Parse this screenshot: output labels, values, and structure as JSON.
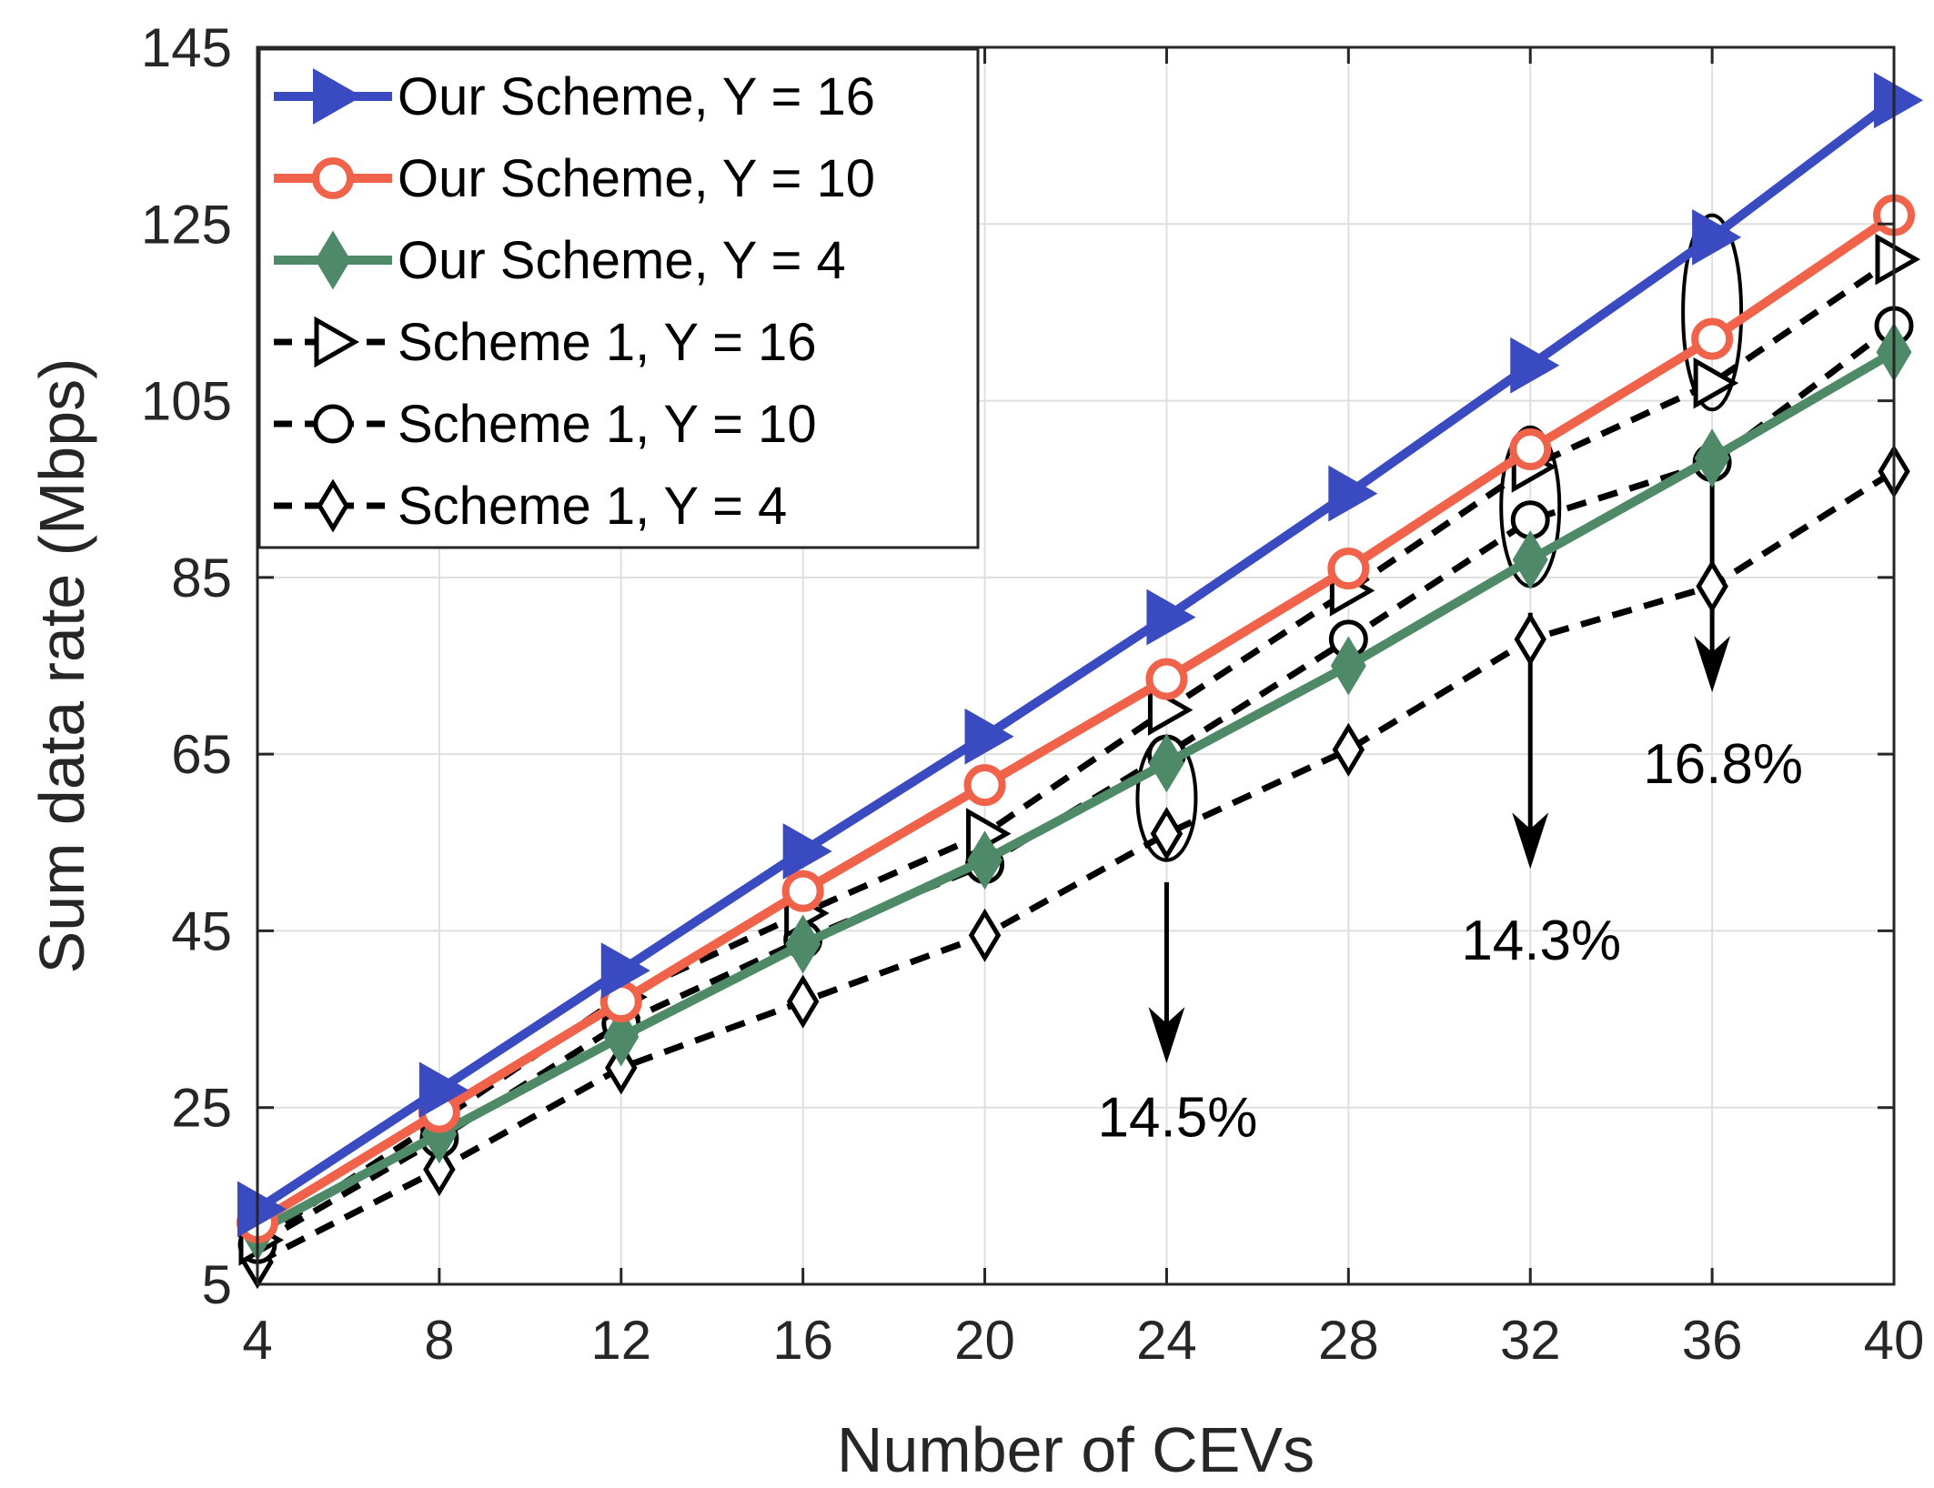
{
  "chart_data": {
    "type": "line",
    "title": "",
    "xlabel": "Number of CEVs",
    "ylabel": "Sum data rate (Mbps)",
    "x": [
      4,
      8,
      12,
      16,
      20,
      24,
      28,
      32,
      36,
      40
    ],
    "xlim": [
      4,
      40
    ],
    "ylim": [
      5,
      145
    ],
    "xticks": [
      "4",
      "8",
      "12",
      "16",
      "20",
      "24",
      "28",
      "32",
      "36",
      "40"
    ],
    "yticks": [
      "5",
      "25",
      "45",
      "65",
      "85",
      "105",
      "125",
      "145"
    ],
    "grid": true,
    "legend_position": "top-left",
    "series": [
      {
        "name": "Our Scheme, Y = 16",
        "color": "#3a4ac0",
        "line": "solid",
        "marker": "triangle-right",
        "values": [
          13.5,
          27,
          40.5,
          54,
          67,
          80.5,
          94.5,
          109,
          123.5,
          139
        ]
      },
      {
        "name": "Our Scheme, Y = 10",
        "color": "#f0634a",
        "line": "solid",
        "marker": "circle",
        "values": [
          12,
          24.5,
          37,
          49.5,
          61.5,
          73.5,
          86,
          99.5,
          112,
          126
        ]
      },
      {
        "name": "Our Scheme, Y = 4",
        "color": "#4f8a68",
        "line": "solid",
        "marker": "diamond",
        "values": [
          11,
          22,
          33,
          43.5,
          53,
          64,
          75,
          87,
          98.5,
          110.5
        ]
      },
      {
        "name": "Scheme 1, Y = 16",
        "color": "#000000",
        "line": "dashed",
        "marker": "triangle-right",
        "values": [
          10,
          23.5,
          37.5,
          47,
          56,
          70,
          83.5,
          97.5,
          107,
          121
        ]
      },
      {
        "name": "Scheme 1, Y = 10",
        "color": "#000000",
        "line": "dashed",
        "marker": "circle",
        "values": [
          9.5,
          21.5,
          34.5,
          44,
          52.5,
          65,
          78,
          91.5,
          98,
          113.5
        ]
      },
      {
        "name": "Scheme 1, Y = 4",
        "color": "#000000",
        "line": "dashed",
        "marker": "diamond",
        "values": [
          7.5,
          18,
          29.5,
          37,
          44.5,
          56,
          65.5,
          78,
          84,
          97
        ]
      }
    ],
    "annotations": [
      {
        "text": "14.5%",
        "x": 24,
        "ellipse_y": [
          53,
          67
        ],
        "arrow_y": [
          50.5,
          30
        ],
        "label_y": 24
      },
      {
        "text": "14.3%",
        "x": 32,
        "ellipse_y": [
          84,
          102
        ],
        "arrow_y": [
          81,
          52
        ],
        "label_y": 44
      },
      {
        "text": "16.8%",
        "x": 36,
        "ellipse_y": [
          104,
          126
        ],
        "arrow_y": [
          95.5,
          72
        ],
        "label_y": 64
      }
    ]
  }
}
